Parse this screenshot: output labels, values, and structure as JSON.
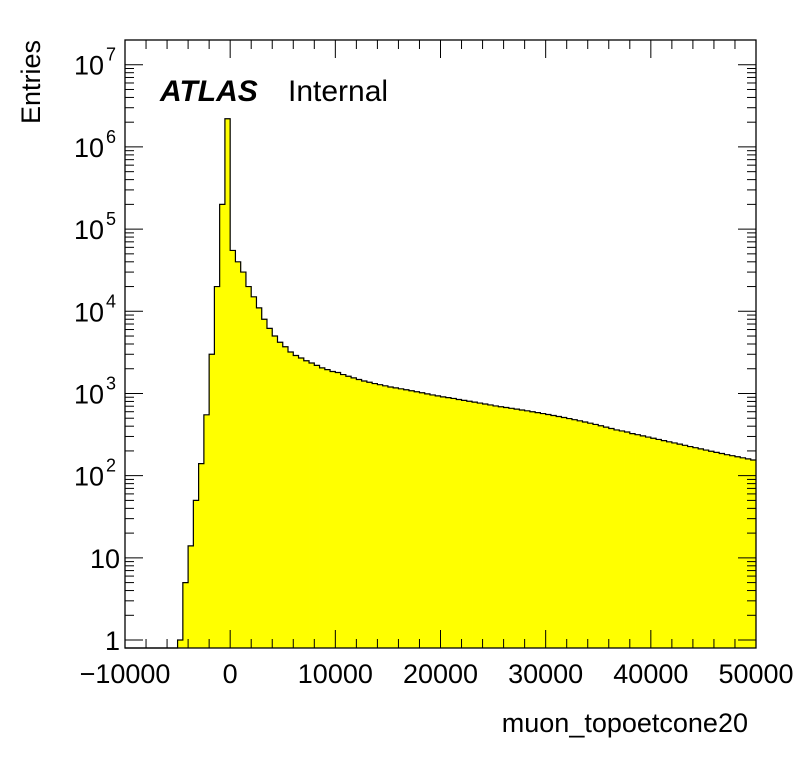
{
  "chart_data": {
    "type": "bar",
    "histogram": true,
    "xlabel": "muon_topoetcone20",
    "ylabel": "Entries",
    "experiment_label": "ATLAS",
    "status_label": "Internal",
    "xlim": [
      -10000,
      50000
    ],
    "ylim": [
      0.8,
      20000000
    ],
    "y_scale": "log",
    "x_tick_labels": [
      "−10000",
      "0",
      "10000",
      "20000",
      "30000",
      "40000",
      "50000"
    ],
    "x_tick_values": [
      -10000,
      0,
      10000,
      20000,
      30000,
      40000,
      50000
    ],
    "y_tick_values": [
      1,
      10,
      100,
      1000,
      10000,
      100000,
      1000000,
      10000000
    ],
    "y_tick_labels": [
      {
        "base": "1",
        "exp": ""
      },
      {
        "base": "10",
        "exp": ""
      },
      {
        "base": "10",
        "exp": "2"
      },
      {
        "base": "10",
        "exp": "3"
      },
      {
        "base": "10",
        "exp": "4"
      },
      {
        "base": "10",
        "exp": "5"
      },
      {
        "base": "10",
        "exp": "6"
      },
      {
        "base": "10",
        "exp": "7"
      }
    ],
    "fill_color": "#ffff00",
    "line_color": "#000000",
    "bin_width": 500,
    "bin_edges_start": -10000,
    "values": [
      0,
      0,
      0,
      0,
      0,
      0,
      0,
      0,
      0,
      0,
      1,
      5,
      14,
      50,
      140,
      550,
      3000,
      20000,
      200000,
      2200000,
      55000,
      40000,
      30000,
      20000,
      15000,
      11000,
      8000,
      6200,
      5000,
      4200,
      3700,
      3200,
      2900,
      2700,
      2500,
      2350,
      2200,
      2050,
      1950,
      1850,
      1800,
      1700,
      1620,
      1550,
      1480,
      1420,
      1370,
      1320,
      1280,
      1240,
      1200,
      1170,
      1140,
      1110,
      1080,
      1050,
      1020,
      990,
      960,
      935,
      910,
      890,
      870,
      845,
      825,
      805,
      785,
      765,
      745,
      725,
      705,
      690,
      675,
      660,
      645,
      630,
      615,
      600,
      585,
      570,
      555,
      540,
      525,
      510,
      495,
      480,
      465,
      450,
      435,
      420,
      405,
      390,
      375,
      360,
      350,
      340,
      325,
      315,
      305,
      295,
      285,
      276,
      267,
      258,
      250,
      242,
      234,
      226,
      219,
      212,
      205,
      198,
      192,
      186,
      180,
      175,
      170,
      165,
      160,
      155
    ]
  }
}
